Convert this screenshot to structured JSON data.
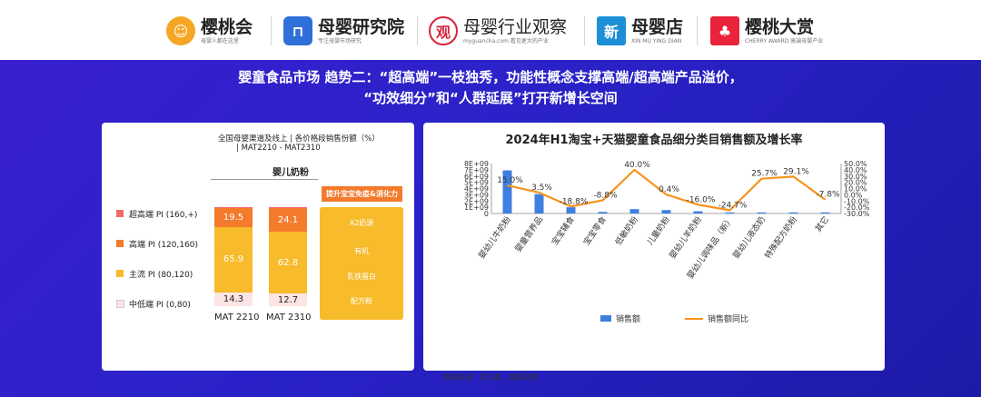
{
  "header": {
    "logos": [
      {
        "name": "樱桃会",
        "sub": "母婴人都在这里",
        "mark": "☺",
        "mark_color": "#f5a623"
      },
      {
        "name": "母婴研究院",
        "sub": "专注母婴市场研究",
        "mark": "⊓",
        "mark_color": "#2f6fd8"
      },
      {
        "name": "母婴行业观察",
        "sub": "myguancha.com 看见更大的产业",
        "mark": "观",
        "mark_color": "#d8233a"
      },
      {
        "name": "母婴店",
        "sub": "XIN MU YING DIAN",
        "mark": "新",
        "mark_color": "#1c8fd6"
      },
      {
        "name": "樱桃大赏",
        "sub": "CHERRY AWARD 高端母婴产业",
        "mark": "♣",
        "mark_color": "#e8233a"
      }
    ]
  },
  "title": {
    "line1": "婴童食品市场  趋势二：“超高端”一枝独秀，功能性概念支撑高端/超高端产品溢价，",
    "line2": "“功效细分”和“人群延展”打开新增长空间"
  },
  "left_panel": {
    "subtitle_line1": "全国母婴渠道及线上 | 各价格段销售份额（%）",
    "subtitle_line2": "| MAT2210 - MAT2310",
    "category": "婴儿奶粉",
    "legend": [
      {
        "label": "超高端 PI (160,+)",
        "color": "#f26b6b"
      },
      {
        "label": "高端 PI (120,160)",
        "color": "#f47a2c"
      },
      {
        "label": "主流 PI (80,120)",
        "color": "#f7bb2b"
      },
      {
        "label": "中低端 PI (0,80)",
        "color": "#fde4e4"
      }
    ],
    "feature_tag": "提升宝宝免疫&消化力",
    "features": [
      "A2奶源",
      "有机",
      "乳铁蛋白",
      "配方粉"
    ]
  },
  "chart_data": [
    {
      "type": "bar",
      "stacked": true,
      "categories": [
        "MAT 2210",
        "MAT 2310"
      ],
      "series": [
        {
          "name": "中低端 PI (0,80)",
          "values": [
            14.3,
            12.7
          ],
          "color": "#fde4e4"
        },
        {
          "name": "主流 PI (80,120)",
          "values": [
            65.9,
            62.8
          ],
          "color": "#f7bb2b"
        },
        {
          "name": "高端 PI (120,160)",
          "values": [
            19.5,
            24.1
          ],
          "color": "#f47a2c"
        },
        {
          "name": "超高端 PI (160,+)",
          "values": [
            0.3,
            0.4
          ],
          "color": "#f26b6b"
        }
      ],
      "ylim": [
        0,
        100
      ]
    },
    {
      "type": "bar+line",
      "title": "2024年H1淘宝+天猫婴童食品细分类目销售额及增长率",
      "categories": [
        "婴幼儿牛奶粉",
        "婴童营养品",
        "宝宝辅食",
        "宝宝零食",
        "低敏奶粉",
        "儿童奶粉",
        "婴幼儿羊奶粉",
        "婴幼儿调味品（新）",
        "婴幼儿液态奶",
        "特殊配方奶粉",
        "其它"
      ],
      "series": [
        {
          "name": "销售额",
          "type": "bar",
          "axis": "left",
          "color": "#3f7fe0",
          "values": [
            6900000000,
            3100000000,
            1000000000,
            250000000,
            700000000,
            550000000,
            350000000,
            120000000,
            80000000,
            60000000,
            40000000
          ]
        },
        {
          "name": "销售额同比",
          "type": "line",
          "axis": "right",
          "color": "#f7931e",
          "values": [
            15.0,
            3.5,
            -18.8,
            -8.8,
            40.0,
            0.4,
            -16.0,
            -24.7,
            25.7,
            29.1,
            -7.8
          ],
          "labels": [
            "15.0%",
            "3.5%",
            "-18.8%",
            "-8.8%",
            "40.0%",
            "0.4%",
            "-16.0%",
            "-24.7%",
            "25.7%",
            "29.1%",
            "-7.8%"
          ]
        }
      ],
      "y_left": {
        "ticks": [
          0,
          1000000000,
          2000000000,
          3000000000,
          4000000000,
          5000000000,
          6000000000,
          7000000000,
          8000000000
        ],
        "tick_labels": [
          "0",
          "1E+09",
          "2E+09",
          "3E+09",
          "4E+09",
          "5E+09",
          "6E+09",
          "7E+09",
          "8E+09"
        ],
        "range": [
          0,
          8000000000
        ]
      },
      "y_right": {
        "ticks": [
          -30,
          -20,
          -10,
          0,
          10,
          20,
          30,
          40,
          50
        ],
        "tick_labels": [
          "-30.0%",
          "-20.0%",
          "-10.0%",
          "0.0%",
          "10.0%",
          "20.0%",
          "30.0%",
          "40.0%",
          "50.0%"
        ],
        "range": [
          -30,
          50
        ]
      },
      "legend_placement": "bottom"
    }
  ],
  "footer": "数据来源：尼尔森，魔镜洞察"
}
